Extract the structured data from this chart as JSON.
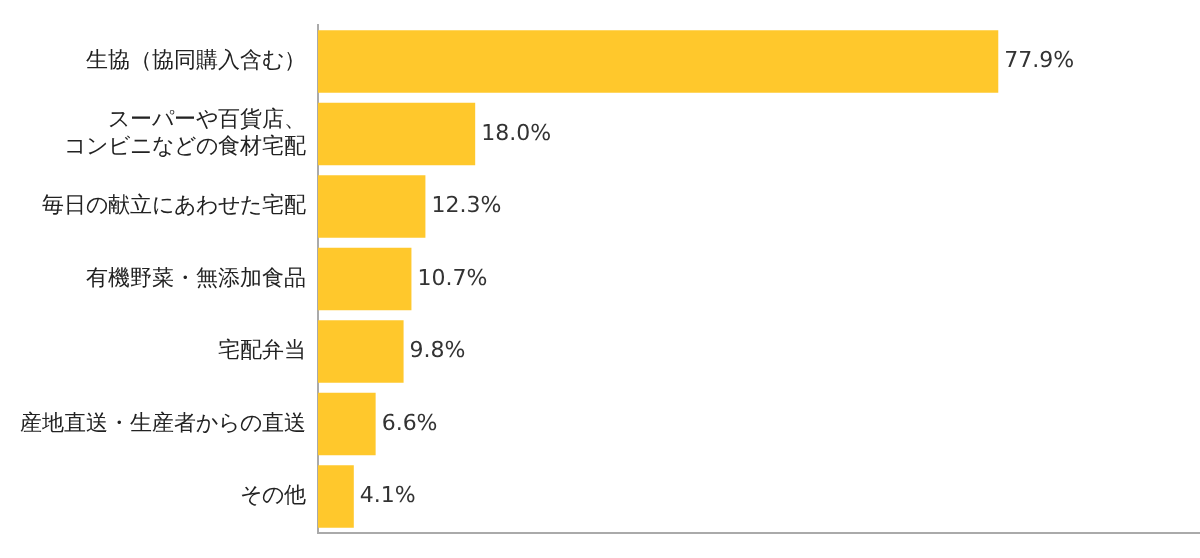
{
  "chart_data": {
    "type": "bar",
    "orientation": "horizontal",
    "categories": [
      "生協（協同購入含む）",
      "スーパーや百貨店、コンビニなどの食材宅配",
      "毎日の献立にあわせた宅配",
      "有機野菜・無添加食品",
      "宅配弁当",
      "産地直送・生産者からの直送",
      "その他"
    ],
    "values": [
      77.9,
      18.0,
      12.3,
      10.7,
      9.8,
      6.6,
      4.1
    ],
    "value_labels": [
      "77.9%",
      "18.0%",
      "12.3%",
      "10.7%",
      "9.8%",
      "6.6%",
      "4.1%"
    ],
    "color": "#ffc82c",
    "xlim": [
      0,
      101
    ],
    "grid": false,
    "tick_labels": "y",
    "legend": false
  }
}
